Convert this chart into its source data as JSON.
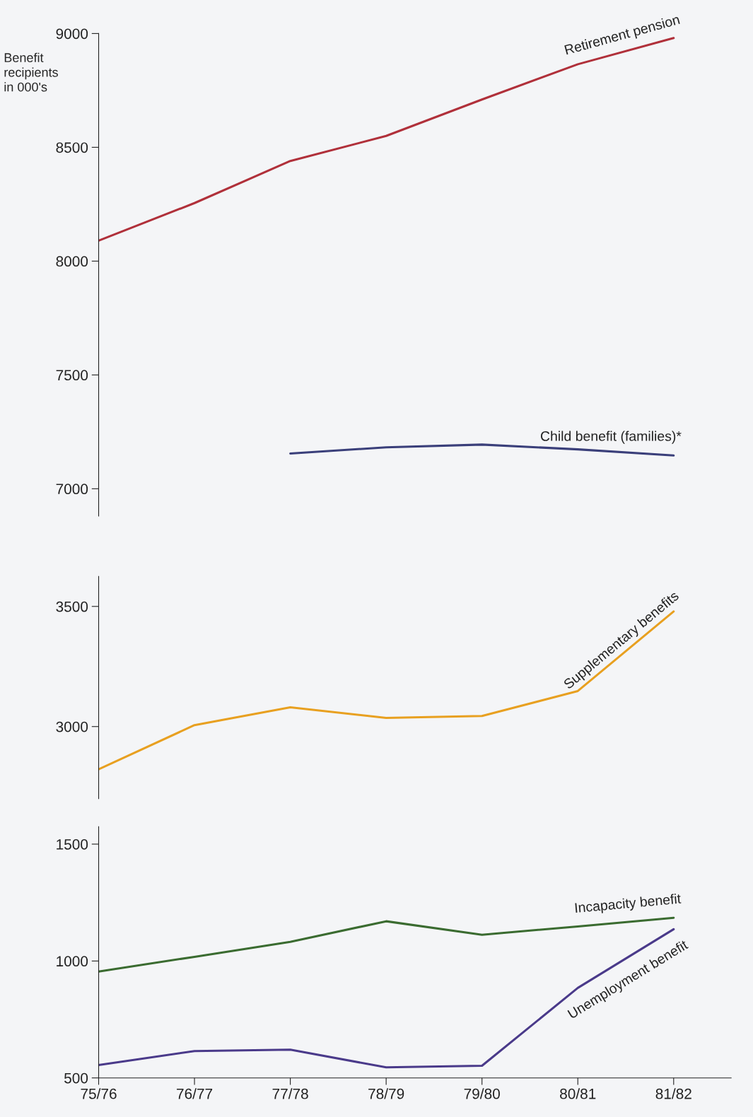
{
  "chart_data": [
    {
      "type": "line",
      "ylabel": "Benefit recipients in 000's",
      "ylim": [
        6880,
        9000
      ],
      "yticks": [
        7000,
        7500,
        8000,
        8500,
        9000
      ],
      "tick_labels": "y",
      "series": [
        {
          "name": "Retirement pension",
          "color": "#b0303a",
          "values": [
            8090,
            8255,
            8440,
            8550,
            8710,
            8865,
            8980
          ]
        },
        {
          "name": "Child benefit (families)*",
          "color": "#3a3f7a",
          "values": [
            null,
            null,
            7155,
            7182,
            7194,
            7173,
            7146
          ]
        }
      ]
    },
    {
      "type": "line",
      "ylim": [
        2700,
        3625
      ],
      "yticks": [
        3000,
        3500
      ],
      "tick_labels": "y",
      "series": [
        {
          "name": "Supplementary benefits",
          "color": "#e8a020",
          "values": [
            2822,
            3006,
            3080,
            3036,
            3044,
            3148,
            3479
          ]
        }
      ]
    },
    {
      "type": "line",
      "categories": [
        "75/76",
        "76/77",
        "77/78",
        "78/79",
        "79/80",
        "80/81",
        "81/82"
      ],
      "ylim": [
        500,
        1575
      ],
      "yticks": [
        500,
        1000,
        1500
      ],
      "series": [
        {
          "name": "Incapacity benefit",
          "color": "#3a6b30",
          "values": [
            955,
            1018,
            1082,
            1170,
            1112,
            1148,
            1185
          ]
        },
        {
          "name": "Unemployment benefit",
          "color": "#4a3a8a",
          "values": [
            555,
            615,
            621,
            545,
            552,
            885,
            1136
          ]
        }
      ]
    }
  ]
}
